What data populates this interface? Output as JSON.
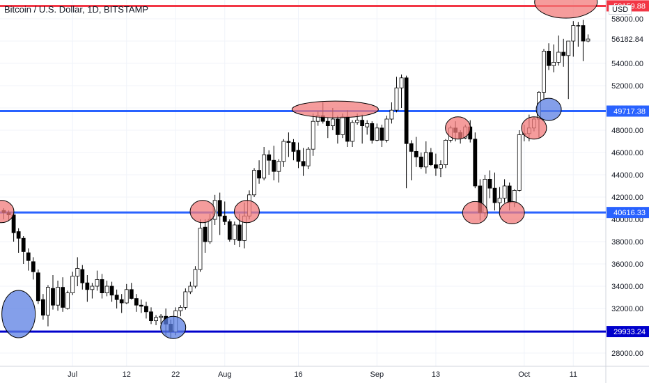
{
  "chart_data": {
    "type": "candlestick",
    "title": "Bitcoin / U.S. Dollar, 1D, BITSTAMP",
    "currency_label": "USD",
    "ylim": [
      27000,
      59500
    ],
    "y_ticks": [
      28000,
      30000,
      32000,
      34000,
      36000,
      38000,
      40000,
      42000,
      44000,
      46000,
      48000,
      50000,
      52000,
      54000,
      56000,
      58000
    ],
    "y_tick_labels": [
      "28000.00",
      "30000.00",
      "32000.00",
      "34000.00",
      "36000.00",
      "38000.00",
      "40000.00",
      "42000.00",
      "44000.00",
      "46000.00",
      "48000.00",
      "50000.00",
      "52000.00",
      "54000.00",
      "56000.00",
      "58000.00"
    ],
    "x_labels": [
      {
        "index": 14,
        "label": "Jul"
      },
      {
        "index": 25,
        "label": "12"
      },
      {
        "index": 35,
        "label": "22"
      },
      {
        "index": 45,
        "label": "Aug"
      },
      {
        "index": 60,
        "label": "16"
      },
      {
        "index": 76,
        "label": "Sep"
      },
      {
        "index": 88,
        "label": "13"
      },
      {
        "index": 106,
        "label": "Oct"
      },
      {
        "index": 116,
        "label": "11"
      }
    ],
    "last_price": 56182.84,
    "last_price_label": "56182.84",
    "levels": [
      {
        "price": 59159.88,
        "label": "59159.88",
        "color": "#f23645",
        "text_color": "#ffffff"
      },
      {
        "price": 49717.38,
        "label": "49717.38",
        "color": "#2962ff",
        "text_color": "#ffffff"
      },
      {
        "price": 40616.33,
        "label": "40616.33",
        "color": "#2962ff",
        "text_color": "#ffffff"
      },
      {
        "price": 29933.24,
        "label": "29933.24",
        "color": "#0000cc",
        "text_color": "#ffffff"
      }
    ],
    "ohlc": [
      [
        40800,
        41000,
        40000,
        40600
      ],
      [
        40600,
        40800,
        39900,
        40400
      ],
      [
        40400,
        40700,
        38000,
        38800
      ],
      [
        38900,
        39200,
        37000,
        38300
      ],
      [
        38300,
        38500,
        36000,
        37100
      ],
      [
        37000,
        37400,
        35400,
        36300
      ],
      [
        36200,
        36600,
        34600,
        35300
      ],
      [
        35200,
        35500,
        32400,
        32700
      ],
      [
        32800,
        33300,
        31000,
        31400
      ],
      [
        31400,
        34100,
        30400,
        33900
      ],
      [
        33800,
        35000,
        31900,
        32300
      ],
      [
        32300,
        34500,
        31800,
        33900
      ],
      [
        33900,
        34800,
        31700,
        32100
      ],
      [
        32000,
        33600,
        31900,
        33400
      ],
      [
        33400,
        35300,
        33200,
        34900
      ],
      [
        34900,
        36600,
        34000,
        35600
      ],
      [
        35500,
        35900,
        33700,
        34300
      ],
      [
        34300,
        35000,
        32600,
        33700
      ],
      [
        33700,
        34300,
        32900,
        34000
      ],
      [
        34000,
        35400,
        33600,
        34600
      ],
      [
        34600,
        35100,
        32900,
        33400
      ],
      [
        33400,
        34500,
        33100,
        34000
      ],
      [
        34000,
        34400,
        32600,
        33200
      ],
      [
        33200,
        33700,
        32000,
        32800
      ],
      [
        32800,
        33300,
        31600,
        32500
      ],
      [
        32500,
        34200,
        32400,
        33700
      ],
      [
        33700,
        34300,
        32800,
        32900
      ],
      [
        32900,
        33300,
        31700,
        32300
      ],
      [
        32300,
        32800,
        31600,
        32200
      ],
      [
        32200,
        32600,
        31100,
        31700
      ],
      [
        31700,
        32100,
        30600,
        30900
      ],
      [
        30900,
        31400,
        30500,
        31200
      ],
      [
        31200,
        31500,
        30600,
        31300
      ],
      [
        31300,
        32000,
        29600,
        30600
      ],
      [
        30600,
        31000,
        29300,
        29900
      ],
      [
        29900,
        32100,
        29600,
        31800
      ],
      [
        31800,
        32300,
        31300,
        32100
      ],
      [
        32100,
        33800,
        31900,
        33500
      ],
      [
        33500,
        34400,
        33300,
        34000
      ],
      [
        34000,
        35800,
        33800,
        35500
      ],
      [
        35500,
        40000,
        35300,
        39200
      ],
      [
        39300,
        40000,
        37000,
        38000
      ],
      [
        38000,
        40500,
        37800,
        40000
      ],
      [
        40000,
        42200,
        39500,
        41700
      ],
      [
        41700,
        42400,
        38600,
        40300
      ],
      [
        40300,
        41600,
        39500,
        39800
      ],
      [
        39800,
        40000,
        38000,
        38200
      ],
      [
        38200,
        39800,
        37700,
        39500
      ],
      [
        39500,
        40500,
        37500,
        38100
      ],
      [
        38100,
        41500,
        37400,
        40300
      ],
      [
        40300,
        42600,
        40000,
        42200
      ],
      [
        42200,
        44600,
        42000,
        44400
      ],
      [
        44400,
        45300,
        43200,
        43700
      ],
      [
        43700,
        46500,
        43500,
        45800
      ],
      [
        45800,
        46200,
        44000,
        45300
      ],
      [
        45300,
        46600,
        43500,
        44300
      ],
      [
        44300,
        45400,
        43300,
        45200
      ],
      [
        45200,
        47200,
        44700,
        47000
      ],
      [
        47000,
        47800,
        45600,
        46900
      ],
      [
        46900,
        47200,
        45300,
        46100
      ],
      [
        46200,
        46900,
        44600,
        45200
      ],
      [
        45200,
        46400,
        43900,
        44800
      ],
      [
        44800,
        46500,
        44500,
        46300
      ],
      [
        46300,
        49500,
        45700,
        48800
      ],
      [
        48800,
        49700,
        48400,
        49300
      ],
      [
        49300,
        50500,
        48600,
        48800
      ],
      [
        48800,
        49100,
        47300,
        48400
      ],
      [
        48400,
        50000,
        48000,
        49000
      ],
      [
        49000,
        49300,
        46800,
        47600
      ],
      [
        47600,
        49500,
        47300,
        49200
      ],
      [
        49200,
        49800,
        46500,
        47000
      ],
      [
        47000,
        48900,
        46500,
        48700
      ],
      [
        48700,
        49500,
        48500,
        48900
      ],
      [
        48900,
        49400,
        46800,
        48400
      ],
      [
        48300,
        48900,
        47600,
        48600
      ],
      [
        48600,
        48800,
        46800,
        47100
      ],
      [
        47100,
        48600,
        47000,
        48200
      ],
      [
        48200,
        48500,
        46500,
        47100
      ],
      [
        47100,
        49300,
        46900,
        49000
      ],
      [
        49000,
        50500,
        48600,
        49800
      ],
      [
        49800,
        52800,
        49600,
        51800
      ],
      [
        51800,
        53000,
        50000,
        52700
      ],
      [
        52700,
        52900,
        42800,
        46800
      ],
      [
        46800,
        47100,
        43500,
        46100
      ],
      [
        46100,
        47400,
        44700,
        45600
      ],
      [
        45600,
        46000,
        44500,
        44700
      ],
      [
        44700,
        47000,
        44100,
        46000
      ],
      [
        46000,
        46400,
        44800,
        44900
      ],
      [
        44900,
        45900,
        43900,
        44600
      ],
      [
        44600,
        45300,
        43800,
        44900
      ],
      [
        44900,
        47200,
        44600,
        47100
      ],
      [
        47100,
        48400,
        46900,
        48200
      ],
      [
        48200,
        48800,
        47000,
        47800
      ],
      [
        47800,
        48000,
        46800,
        47300
      ],
      [
        47300,
        48500,
        47200,
        48300
      ],
      [
        48300,
        48900,
        46900,
        47200
      ],
      [
        47200,
        47800,
        42800,
        43000
      ],
      [
        43000,
        43600,
        39900,
        40600
      ],
      [
        40600,
        44000,
        40200,
        43600
      ],
      [
        43600,
        44400,
        41900,
        42800
      ],
      [
        42800,
        44200,
        40800,
        41500
      ],
      [
        41500,
        42900,
        40700,
        41900
      ],
      [
        41900,
        43600,
        41500,
        43000
      ],
      [
        43000,
        43300,
        40800,
        41500
      ],
      [
        41500,
        42700,
        41100,
        42600
      ],
      [
        42600,
        48000,
        42500,
        47600
      ],
      [
        47600,
        48500,
        47000,
        47700
      ],
      [
        47700,
        49400,
        47000,
        48200
      ],
      [
        48200,
        49200,
        47900,
        49000
      ],
      [
        49000,
        51500,
        47300,
        51400
      ],
      [
        51400,
        55300,
        50700,
        55100
      ],
      [
        55100,
        55800,
        53400,
        53800
      ],
      [
        53800,
        55700,
        53200,
        54100
      ],
      [
        54100,
        56500,
        53800,
        55000
      ],
      [
        55000,
        56200,
        53700,
        54700
      ],
      [
        54700,
        55900,
        50800,
        56000
      ],
      [
        56000,
        57800,
        54600,
        57400
      ],
      [
        57400,
        57700,
        55500,
        57400
      ],
      [
        57400,
        57900,
        54200,
        56000
      ],
      [
        56000,
        56600,
        55900,
        56182.84
      ]
    ],
    "annotations": [
      {
        "type": "ellipse",
        "center_index": 3,
        "price": 31500,
        "color": "#5b7fe3"
      },
      {
        "type": "ellipse",
        "center_index": 34.5,
        "price": 30300,
        "color": "#5b7fe3"
      },
      {
        "type": "ellipse",
        "center_index": 40.5,
        "price": 40700,
        "color": "#f27b7b"
      },
      {
        "type": "ellipse",
        "center_index": 49.5,
        "price": 40700,
        "color": "#f27b7b"
      },
      {
        "type": "ellipse",
        "center_index": 67.5,
        "price": 49870,
        "color": "#f27b7b"
      },
      {
        "type": "ellipse",
        "center_index": 92.5,
        "price": 48200,
        "color": "#f27b7b"
      },
      {
        "type": "ellipse",
        "center_index": 96,
        "price": 40600,
        "color": "#f27b7b"
      },
      {
        "type": "ellipse",
        "center_index": 103.5,
        "price": 40600,
        "color": "#f27b7b"
      },
      {
        "type": "ellipse",
        "center_index": 108,
        "price": 48200,
        "color": "#f27b7b"
      },
      {
        "type": "ellipse",
        "center_index": 111,
        "price": 49870,
        "color": "#5b7fe3"
      },
      {
        "type": "ellipse",
        "center_index": 114.5,
        "price": 59500,
        "color": "#f27b7b"
      },
      {
        "type": "ellipse",
        "center_index": -0.5,
        "price": 40700,
        "color": "#f27b7b"
      }
    ],
    "colors": {
      "up": "#ffffff",
      "down": "#000000",
      "wick": "#000000",
      "grid": "#f0f3fa",
      "axis_text": "#131722"
    }
  }
}
